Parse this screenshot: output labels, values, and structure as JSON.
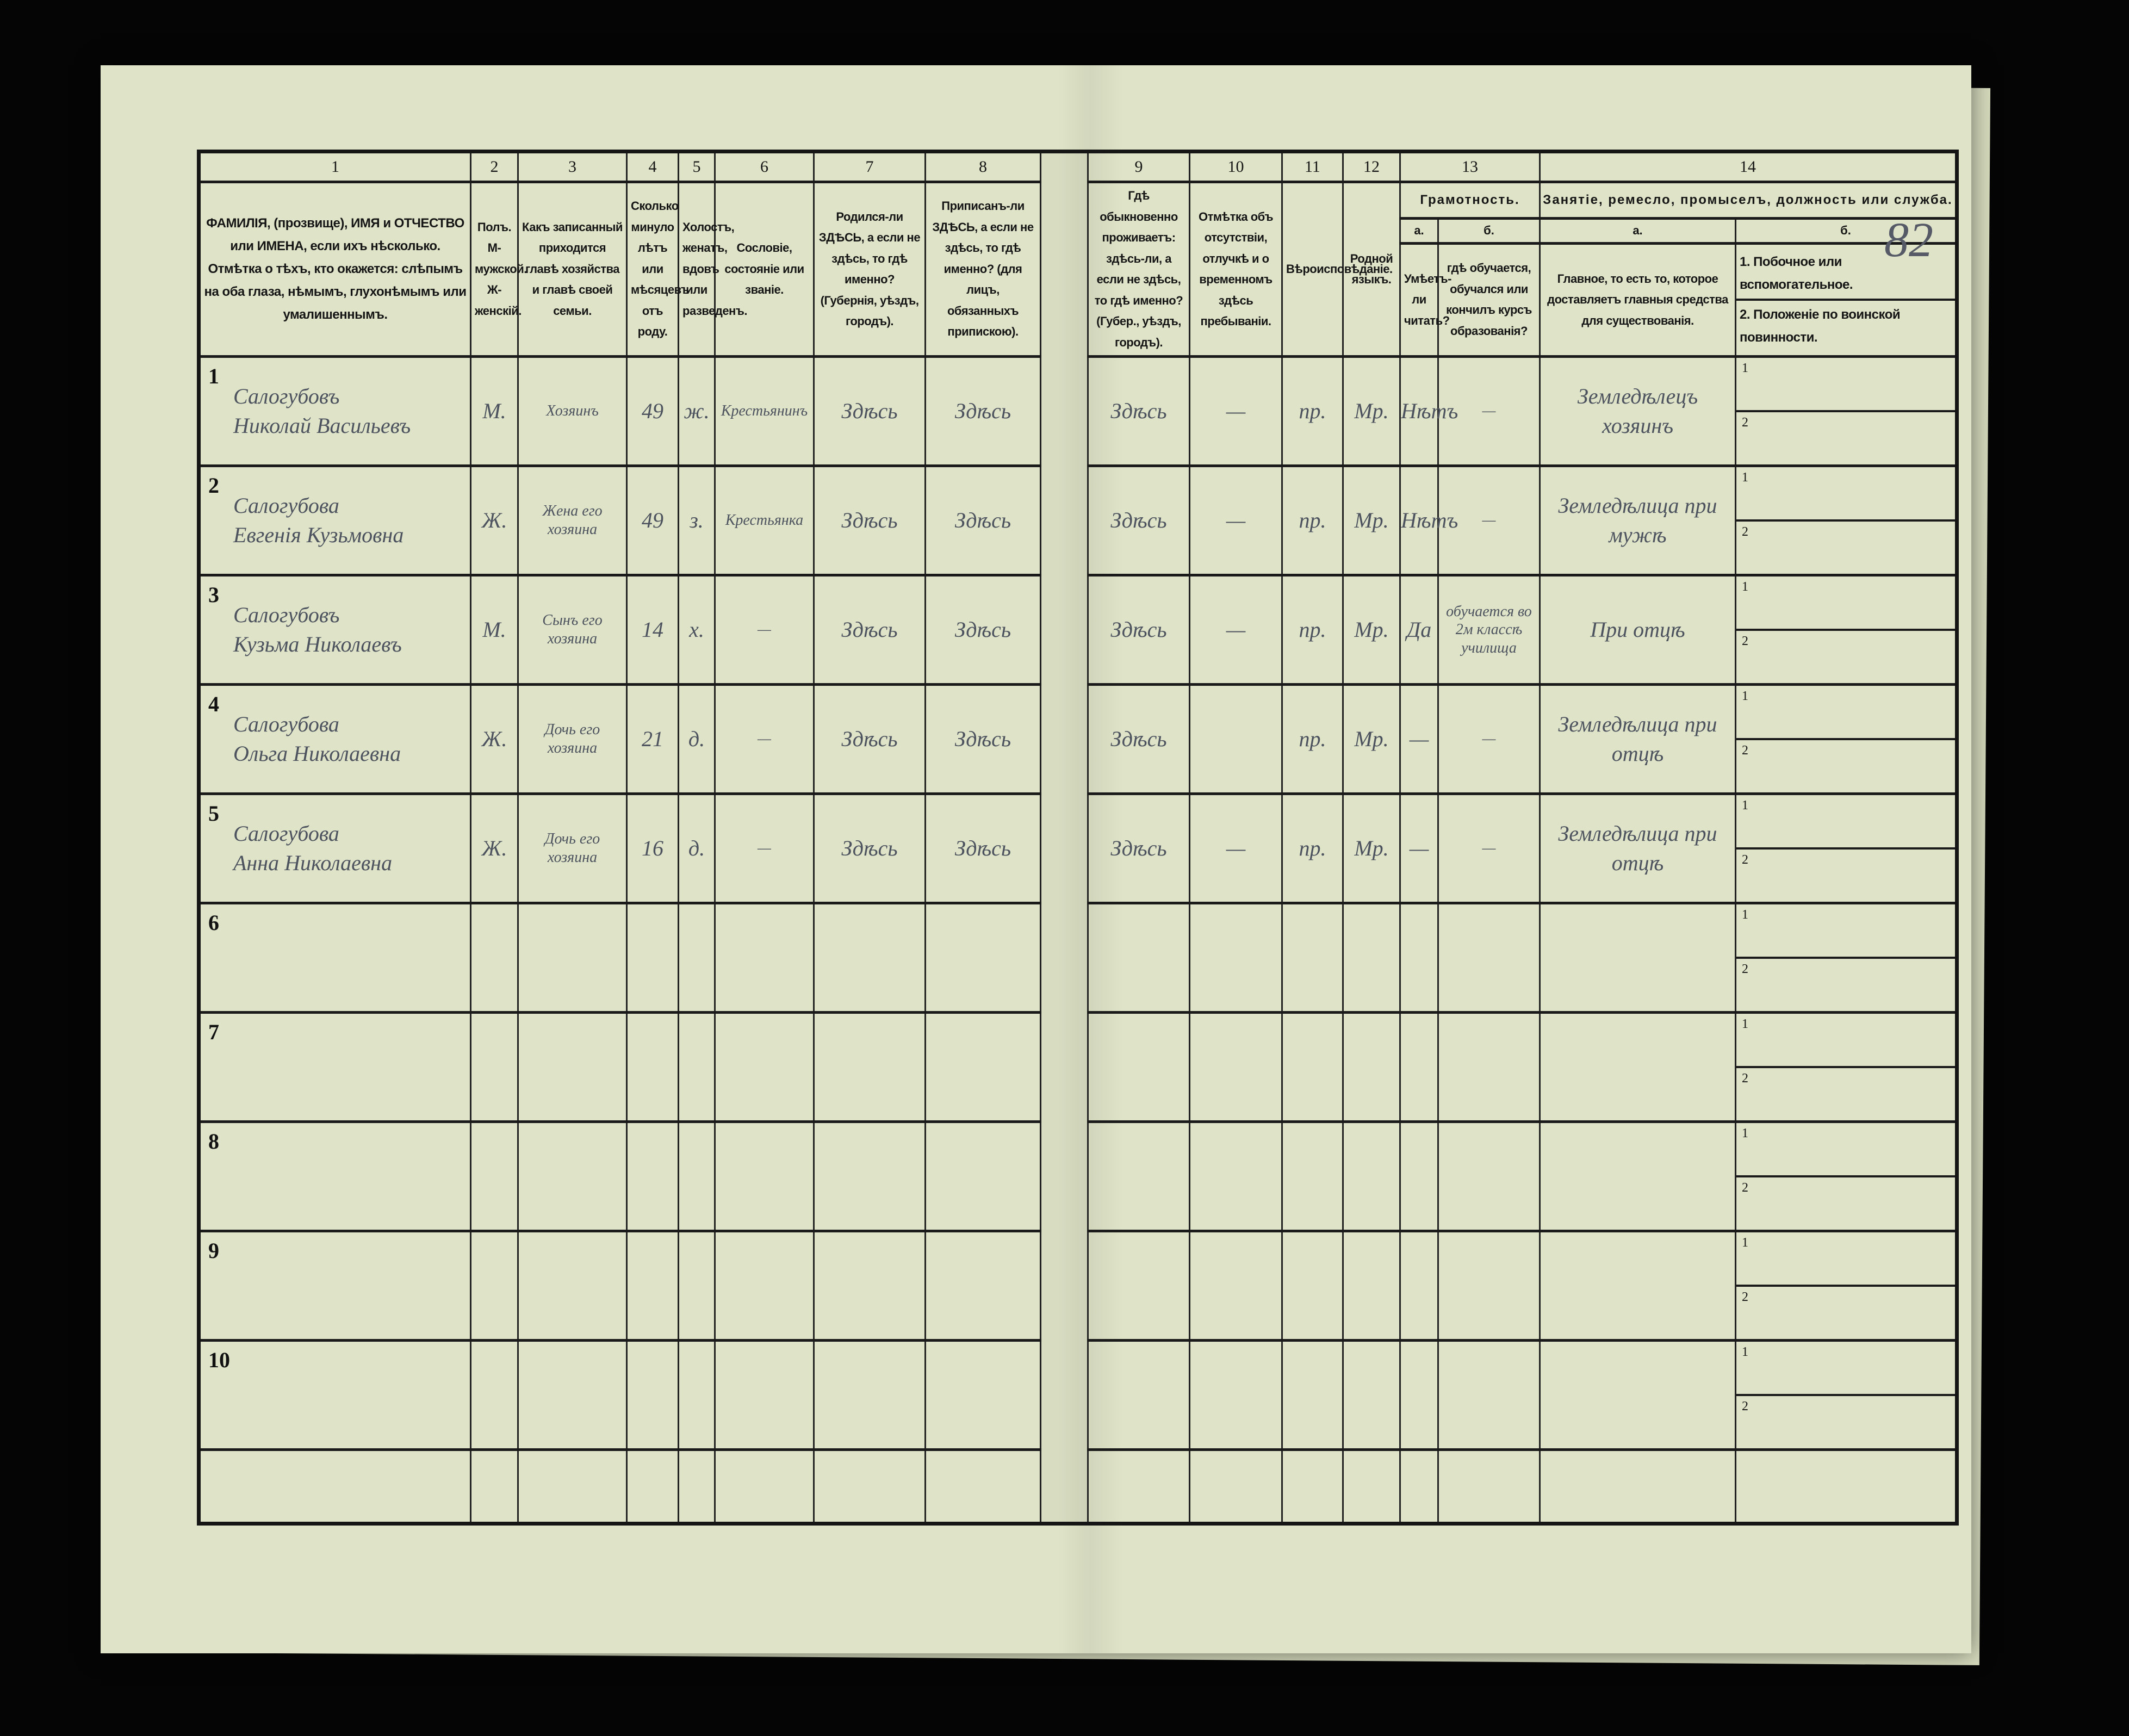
{
  "page_number": "82",
  "colors": {
    "paper": "#dfe4c8",
    "ink_print": "#151515",
    "ink_hand": "#4d535e",
    "background": "#050505"
  },
  "header": {
    "columns": [
      {
        "num": "1",
        "text": "ФАМИЛІЯ, (прозвище), ИМЯ и ОТЧЕСТВО или ИМЕНА, если ихъ нѣсколько. Отмѣтка о тѣхъ, кто окажется: слѣпымъ на оба глаза, нѣмымъ, глухонѣмымъ или умалишеннымъ."
      },
      {
        "num": "2",
        "text": "Полъ. М-мужской. Ж-женскій."
      },
      {
        "num": "3",
        "text": "Какъ записанный приходится главѣ хозяйства и главѣ своей семьи."
      },
      {
        "num": "4",
        "text": "Сколько минуло лѣтъ или мѣсяцевъ отъ роду."
      },
      {
        "num": "5",
        "text": "Холостъ, женатъ, вдовъ или разведенъ."
      },
      {
        "num": "6",
        "text": "Сословіе, состояніе или званіе."
      },
      {
        "num": "7",
        "text": "Родился-ли ЗДѢСЬ, а если не здѣсь, то гдѣ именно? (Губернія, уѣздъ, городъ)."
      },
      {
        "num": "8",
        "text": "Приписанъ-ли ЗДѢСЬ, а если не здѣсь, то гдѣ именно? (для лицъ, обязанныхъ припискою)."
      },
      {
        "num": "9",
        "text": "Гдѣ обыкновенно проживаетъ: здѣсь-ли, а если не здѣсь, то гдѣ именно? (Губер., уѣздъ, городъ)."
      },
      {
        "num": "10",
        "text": "Отмѣтка объ отсутствіи, отлучкѣ и о временномъ здѣсь пребываніи."
      },
      {
        "num": "11",
        "text": "Вѣроисповѣданіе."
      },
      {
        "num": "12",
        "text": "Родной языкъ."
      }
    ],
    "col13": {
      "num": "13",
      "title": "Грамотность.",
      "a_label": "а.",
      "a_text": "Умѣетъ-ли читать?",
      "b_label": "б.",
      "b_text": "гдѣ обучается, обучался или кончилъ курсъ образованія?"
    },
    "col14": {
      "num": "14",
      "title": "Занятіе, ремесло, промыселъ, должность или служба.",
      "a_label": "а.",
      "a_text": "Главное, то есть то, которое доставляетъ главныя средства для существованія.",
      "b_label": "б.",
      "b_1": "1. Побочное или вспомогательное.",
      "b_2": "2. Положеніе по воинской повинности."
    }
  },
  "rows": [
    {
      "n": "1",
      "surname": "Салогубовъ",
      "given": "Николай Васильевъ",
      "sex": "М.",
      "relation": "Хозяинъ",
      "age": "49",
      "marital": "ж.",
      "estate": "Крестьянинъ",
      "born": "Здѣсь",
      "registered": "Здѣсь",
      "resides": "Здѣсь",
      "absence": "—",
      "religion": "пр.",
      "language": "Мр.",
      "literate": "Нѣтъ",
      "schooling": "—",
      "occupation": "Земледѣлецъ хозяинъ",
      "sub1": "1",
      "sub2": "2"
    },
    {
      "n": "2",
      "surname": "Салогубова",
      "given": "Евгенія Кузьмовна",
      "sex": "Ж.",
      "relation": "Жена его хозяина",
      "age": "49",
      "marital": "з.",
      "estate": "Крестьянка",
      "born": "Здѣсь",
      "registered": "Здѣсь",
      "resides": "Здѣсь",
      "absence": "—",
      "religion": "пр.",
      "language": "Мр.",
      "literate": "Нѣтъ",
      "schooling": "—",
      "occupation": "Земледѣлица при мужѣ",
      "sub1": "1",
      "sub2": "2"
    },
    {
      "n": "3",
      "surname": "Салогубовъ",
      "given": "Кузьма Николаевъ",
      "sex": "М.",
      "relation": "Сынъ его хозяина",
      "age": "14",
      "marital": "х.",
      "estate": "—",
      "born": "Здѣсь",
      "registered": "Здѣсь",
      "resides": "Здѣсь",
      "absence": "—",
      "religion": "пр.",
      "language": "Мр.",
      "literate": "Да",
      "schooling": "обучается во 2м классѣ училища",
      "occupation": "При отцѣ",
      "sub1": "1",
      "sub2": "2"
    },
    {
      "n": "4",
      "surname": "Салогубова",
      "given": "Ольга Николаевна",
      "sex": "Ж.",
      "relation": "Дочь его хозяина",
      "age": "21",
      "marital": "д.",
      "estate": "—",
      "born": "Здѣсь",
      "registered": "Здѣсь",
      "resides": "Здѣсь",
      "absence": "",
      "religion": "пр.",
      "language": "Мр.",
      "literate": "—",
      "schooling": "—",
      "occupation": "Земледѣлица при отцѣ",
      "sub1": "1",
      "sub2": "2"
    },
    {
      "n": "5",
      "surname": "Салогубова",
      "given": "Анна Николаевна",
      "sex": "Ж.",
      "relation": "Дочь его хозяина",
      "age": "16",
      "marital": "д.",
      "estate": "—",
      "born": "Здѣсь",
      "registered": "Здѣсь",
      "resides": "Здѣсь",
      "absence": "—",
      "religion": "пр.",
      "language": "Мр.",
      "literate": "—",
      "schooling": "—",
      "occupation": "Земледѣлица при отцѣ",
      "sub1": "1",
      "sub2": "2"
    },
    {
      "n": "6",
      "sub1": "1",
      "sub2": "2"
    },
    {
      "n": "7",
      "sub1": "1",
      "sub2": "2"
    },
    {
      "n": "8",
      "sub1": "1",
      "sub2": "2"
    },
    {
      "n": "9",
      "sub1": "1",
      "sub2": "2"
    },
    {
      "n": "10",
      "sub1": "1",
      "sub2": "2"
    }
  ]
}
